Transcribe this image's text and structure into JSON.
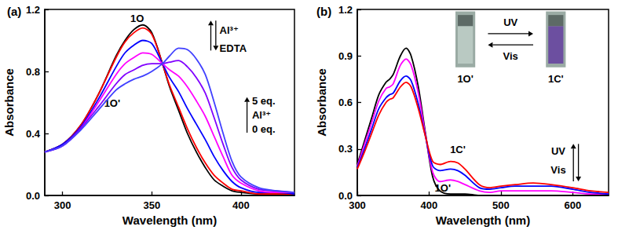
{
  "chart_data": [
    {
      "type": "line",
      "title": "(a)",
      "x_label": "Wavelength (nm)",
      "y_label": "Absorbance",
      "xlim": [
        290,
        430
      ],
      "xticks": [
        300,
        350,
        400
      ],
      "ylim": [
        0,
        1.2
      ],
      "yticks": [
        {
          "value": 0,
          "label": "0.0"
        },
        0.4,
        0.8,
        1.2
      ],
      "grid": false,
      "x": [
        290,
        300,
        310,
        320,
        330,
        335,
        340,
        345,
        350,
        356,
        360,
        365,
        370,
        375,
        380,
        385,
        390,
        395,
        400,
        410,
        420,
        430
      ],
      "series": [
        {
          "color": "#000000",
          "values": [
            0.28,
            0.33,
            0.45,
            0.65,
            0.9,
            1.0,
            1.07,
            1.1,
            1.05,
            0.85,
            0.7,
            0.55,
            0.4,
            0.28,
            0.18,
            0.1,
            0.06,
            0.03,
            0.02,
            0.01,
            0.01,
            0.01
          ]
        },
        {
          "color": "#ff0000",
          "values": [
            0.28,
            0.33,
            0.45,
            0.65,
            0.89,
            0.99,
            1.05,
            1.08,
            1.04,
            0.85,
            0.71,
            0.57,
            0.43,
            0.31,
            0.21,
            0.13,
            0.08,
            0.04,
            0.03,
            0.01,
            0.01,
            0.01
          ]
        },
        {
          "color": "#0000ff",
          "values": [
            0.28,
            0.33,
            0.44,
            0.62,
            0.83,
            0.92,
            0.97,
            1.0,
            0.98,
            0.85,
            0.76,
            0.67,
            0.56,
            0.46,
            0.36,
            0.25,
            0.16,
            0.09,
            0.05,
            0.02,
            0.02,
            0.01
          ]
        },
        {
          "color": "#ff00ff",
          "values": [
            0.28,
            0.32,
            0.43,
            0.6,
            0.78,
            0.85,
            0.89,
            0.92,
            0.91,
            0.85,
            0.81,
            0.77,
            0.7,
            0.61,
            0.51,
            0.38,
            0.25,
            0.13,
            0.08,
            0.03,
            0.02,
            0.02
          ]
        },
        {
          "color": "#8000ff",
          "values": [
            0.28,
            0.32,
            0.43,
            0.57,
            0.72,
            0.78,
            0.81,
            0.84,
            0.85,
            0.85,
            0.86,
            0.87,
            0.83,
            0.76,
            0.66,
            0.5,
            0.33,
            0.18,
            0.1,
            0.04,
            0.03,
            0.02
          ]
        },
        {
          "color": "#4040ff",
          "values": [
            0.28,
            0.32,
            0.42,
            0.55,
            0.68,
            0.72,
            0.75,
            0.77,
            0.8,
            0.85,
            0.9,
            0.95,
            0.94,
            0.88,
            0.78,
            0.6,
            0.4,
            0.22,
            0.12,
            0.05,
            0.03,
            0.02
          ]
        }
      ],
      "annotations": [
        "1O",
        "1O'",
        "Al³⁺",
        "EDTA",
        "5 eq.",
        "Al³⁺",
        "0 eq."
      ]
    },
    {
      "type": "line",
      "title": "(b)",
      "x_label": "Wavelength (nm)",
      "y_label": "Absorbance",
      "xlim": [
        300,
        650
      ],
      "xticks": [
        300,
        400,
        500,
        600
      ],
      "ylim": [
        0,
        1.2
      ],
      "yticks": [
        {
          "value": 0,
          "label": "0.0"
        },
        0.3,
        0.6,
        0.9,
        1.2
      ],
      "grid": false,
      "x": [
        300,
        310,
        320,
        330,
        340,
        345,
        350,
        360,
        368,
        375,
        385,
        395,
        405,
        415,
        430,
        440,
        450,
        470,
        485,
        500,
        520,
        545,
        570,
        600,
        625,
        650
      ],
      "series": [
        {
          "color": "#000000",
          "values": [
            0.2,
            0.35,
            0.5,
            0.65,
            0.73,
            0.75,
            0.78,
            0.9,
            0.95,
            0.9,
            0.7,
            0.4,
            0.12,
            0.03,
            0.01,
            0.01,
            0.01,
            0.0,
            0.0,
            0.0,
            0.0,
            0.0,
            0.0,
            0.0,
            0.0,
            0.0
          ]
        },
        {
          "color": "#ff00ff",
          "values": [
            0.19,
            0.33,
            0.47,
            0.61,
            0.69,
            0.7,
            0.72,
            0.84,
            0.88,
            0.84,
            0.66,
            0.39,
            0.15,
            0.09,
            0.1,
            0.09,
            0.07,
            0.03,
            0.02,
            0.03,
            0.03,
            0.03,
            0.03,
            0.02,
            0.01,
            0.01
          ]
        },
        {
          "color": "#0000ff",
          "values": [
            0.18,
            0.3,
            0.43,
            0.56,
            0.63,
            0.65,
            0.66,
            0.74,
            0.77,
            0.74,
            0.59,
            0.38,
            0.19,
            0.16,
            0.17,
            0.16,
            0.13,
            0.05,
            0.04,
            0.05,
            0.06,
            0.06,
            0.06,
            0.04,
            0.02,
            0.01
          ]
        },
        {
          "color": "#ff0000",
          "values": [
            0.17,
            0.28,
            0.4,
            0.52,
            0.6,
            0.62,
            0.63,
            0.7,
            0.73,
            0.7,
            0.56,
            0.38,
            0.22,
            0.2,
            0.22,
            0.21,
            0.17,
            0.07,
            0.05,
            0.06,
            0.07,
            0.08,
            0.07,
            0.05,
            0.03,
            0.02
          ]
        }
      ],
      "annotations": [
        "1C'",
        "1O'",
        "UV",
        "Vis",
        "1O'",
        "1C'",
        "UV",
        "Vis"
      ]
    }
  ]
}
